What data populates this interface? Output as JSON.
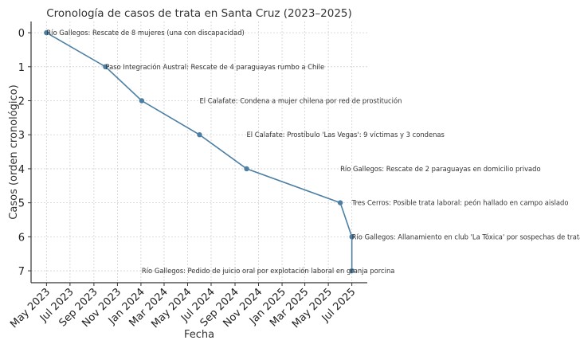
{
  "chart_data": {
    "type": "line",
    "title": "Cronología de casos de trata en Santa Cruz (2023–2025)",
    "xlabel": "Fecha",
    "ylabel": "Casos (orden cronológico)",
    "xlim": [
      "2023-03-22",
      "2025-08-10"
    ],
    "ylim": [
      7.35,
      -0.33
    ],
    "y_inverted": true,
    "grid": true,
    "color": "#4c7fa3",
    "x_ticks": [
      "2023-05-01",
      "2023-07-01",
      "2023-09-01",
      "2023-11-01",
      "2024-01-01",
      "2024-03-01",
      "2024-05-01",
      "2024-07-01",
      "2024-09-01",
      "2024-11-01",
      "2025-01-01",
      "2025-03-01",
      "2025-05-01",
      "2025-07-01"
    ],
    "x_tick_labels": [
      "May 2023",
      "Jul 2023",
      "Sep 2023",
      "Nov 2023",
      "Jan 2024",
      "Mar 2024",
      "May 2024",
      "Jul 2024",
      "Sep 2024",
      "Nov 2024",
      "Jan 2025",
      "Mar 2025",
      "May 2025",
      "Jul 2025"
    ],
    "y_ticks": [
      0,
      1,
      2,
      3,
      4,
      5,
      6,
      7
    ],
    "points": [
      {
        "x": "2023-05-01",
        "y": 0
      },
      {
        "x": "2023-10-01",
        "y": 1
      },
      {
        "x": "2024-01-03",
        "y": 2
      },
      {
        "x": "2024-06-01",
        "y": 3
      },
      {
        "x": "2024-10-01",
        "y": 4
      },
      {
        "x": "2025-06-01",
        "y": 5
      },
      {
        "x": "2025-07-01",
        "y": 6
      },
      {
        "x": "2025-07-01",
        "y": 7
      }
    ],
    "annotations": [
      {
        "text": "Río Gallegos: Rescate de 8 mujeres (una con discapacidad)",
        "x": "2023-05-01",
        "y": 0
      },
      {
        "text": "Paso Integración Austral: Rescate de 4 paraguayas rumbo a Chile",
        "x": "2023-10-01",
        "y": 1
      },
      {
        "text": "El Calafate: Condena a mujer chilena por red de prostitución",
        "x": "2024-06-01",
        "y": 2
      },
      {
        "text": "El Calafate: Prostíbulo 'Las Vegas': 9 víctimas y 3 condenas",
        "x": "2024-10-01",
        "y": 3
      },
      {
        "text": "Río Gallegos: Rescate de 2 paraguayas en domicilio privado",
        "x": "2025-06-01",
        "y": 4
      },
      {
        "text": "Tres Cerros: Posible trata laboral: peón hallado en campo aislado",
        "x": "2025-07-01",
        "y": 5
      },
      {
        "text": "Río Gallegos: Allanamiento en club 'La Tóxica' por sospechas de trata",
        "x": "2025-07-01",
        "y": 6
      },
      {
        "text": "Río Gallegos: Pedido de juicio oral por explotación laboral en granja porcina",
        "x": "2024-01-03",
        "y": 7
      }
    ]
  }
}
